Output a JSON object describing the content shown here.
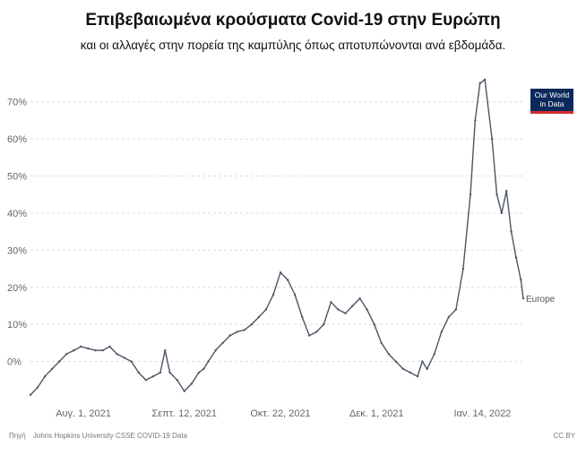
{
  "header": {
    "title": "Επιβεβαιωμένα κρούσματα Covid-19 στην Ευρώπη",
    "subtitle": "και οι αλλαγές στην πορεία της καμπύλης όπως αποτυπώνονται ανά εβδομάδα."
  },
  "logo": {
    "line1": "Our World",
    "line2": "in Data"
  },
  "footer": {
    "source_label": "Πηγή",
    "source": "Johns Hopkins University CSSE COVID-19 Data",
    "license": "CC BY"
  },
  "colors": {
    "line": "#4d5563",
    "grid": "#dddddd",
    "logo_bg": "#0b2a5b",
    "logo_bar": "#d42b2b"
  },
  "chart_data": {
    "type": "line",
    "title": "Επιβεβαιωμένα κρούσματα Covid-19 στην Ευρώπη",
    "subtitle": "και οι αλλαγές στην πορεία της καμπύλης όπως αποτυπώνονται ανά εβδομάδα.",
    "xlabel": "",
    "ylabel": "",
    "ylim": [
      -10,
      75
    ],
    "grid": true,
    "y_ticks": [
      "0%",
      "10%",
      "20%",
      "30%",
      "40%",
      "50%",
      "60%",
      "70%"
    ],
    "y_tick_values": [
      0,
      10,
      20,
      30,
      40,
      50,
      60,
      70
    ],
    "x_ticks": [
      "Αυγ. 1, 2021",
      "Σεπτ. 12, 2021",
      "Οκτ. 22, 2021",
      "Δεκ. 1, 2021",
      "Ιαν. 14, 2022"
    ],
    "x_tick_dates": [
      "2021-08-01",
      "2021-09-12",
      "2021-10-22",
      "2021-12-01",
      "2022-01-14"
    ],
    "xlim": [
      "2021-07-10",
      "2022-01-31"
    ],
    "series": [
      {
        "name": "Europe",
        "x": [
          "2021-07-10",
          "2021-07-13",
          "2021-07-16",
          "2021-07-19",
          "2021-07-22",
          "2021-07-25",
          "2021-07-28",
          "2021-07-31",
          "2021-08-03",
          "2021-08-06",
          "2021-08-09",
          "2021-08-12",
          "2021-08-15",
          "2021-08-18",
          "2021-08-21",
          "2021-08-24",
          "2021-08-27",
          "2021-08-30",
          "2021-09-02",
          "2021-09-04",
          "2021-09-06",
          "2021-09-09",
          "2021-09-12",
          "2021-09-15",
          "2021-09-18",
          "2021-09-20",
          "2021-09-22",
          "2021-09-25",
          "2021-09-28",
          "2021-10-01",
          "2021-10-04",
          "2021-10-07",
          "2021-10-10",
          "2021-10-13",
          "2021-10-16",
          "2021-10-19",
          "2021-10-22",
          "2021-10-25",
          "2021-10-28",
          "2021-10-31",
          "2021-11-03",
          "2021-11-06",
          "2021-11-09",
          "2021-11-12",
          "2021-11-15",
          "2021-11-18",
          "2021-11-21",
          "2021-11-24",
          "2021-11-27",
          "2021-11-30",
          "2021-12-03",
          "2021-12-06",
          "2021-12-09",
          "2021-12-12",
          "2021-12-15",
          "2021-12-18",
          "2021-12-20",
          "2021-12-22",
          "2021-12-25",
          "2021-12-28",
          "2021-12-31",
          "2022-01-03",
          "2022-01-06",
          "2022-01-09",
          "2022-01-11",
          "2022-01-13",
          "2022-01-15",
          "2022-01-18",
          "2022-01-20",
          "2022-01-22",
          "2022-01-24",
          "2022-01-26",
          "2022-01-28",
          "2022-01-30",
          "2022-01-31"
        ],
        "values": [
          -9,
          -7,
          -4,
          -2,
          0,
          2,
          3,
          4,
          3.5,
          3,
          3,
          4,
          2,
          1,
          0,
          -3,
          -5,
          -4,
          -3,
          3,
          -3,
          -5,
          -8,
          -6,
          -3,
          -2,
          0,
          3,
          5,
          7,
          8,
          8.5,
          10,
          12,
          14,
          18,
          24,
          22,
          18,
          12,
          7,
          8,
          10,
          16,
          14,
          13,
          15,
          17,
          14,
          10,
          5,
          2,
          0,
          -2,
          -3,
          -4,
          0,
          -2,
          2,
          8,
          12,
          14,
          25,
          45,
          65,
          75,
          76,
          60,
          45,
          40,
          46,
          35,
          28,
          22,
          17
        ],
        "label": "Europe"
      }
    ]
  }
}
